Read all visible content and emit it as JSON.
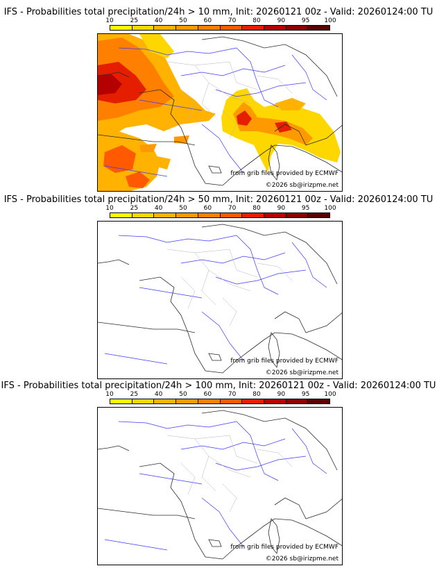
{
  "panels": [
    {
      "title": "IFS - Probabilities total precipitation/24h > 10 mm, Init: 20260121 00z - Valid: 20260124:00 TU",
      "threshold_mm": 10
    },
    {
      "title": "IFS - Probabilities total precipitation/24h > 50 mm, Init: 20260121 00z - Valid: 20260124:00 TU",
      "threshold_mm": 50
    },
    {
      "title": "IFS - Probabilities total precipitation/24h > 100 mm, Init: 20260121 00z - Valid: 20260124:00 TU",
      "threshold_mm": 100
    }
  ],
  "scale": {
    "labels": [
      "10",
      "25",
      "40",
      "50",
      "60",
      "70",
      "80",
      "90",
      "95",
      "100"
    ],
    "colors": [
      "#ffff00",
      "#ffd700",
      "#ffb300",
      "#ff9900",
      "#ff7f00",
      "#ff5a00",
      "#e61e00",
      "#b40000",
      "#8b0000",
      "#5a0000"
    ]
  },
  "credits": {
    "source": "from grib files provided by ECMWF",
    "copyright": "©2026 sb@irizpme.net"
  },
  "colors": {
    "border": "#2a2a2a",
    "rivers": "#3a3aff",
    "regions": "#b4b4b4"
  }
}
